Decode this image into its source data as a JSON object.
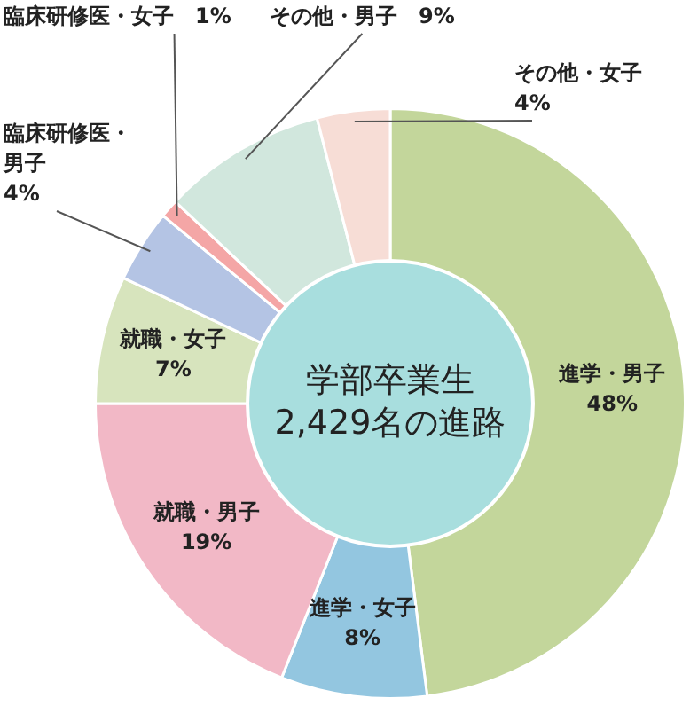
{
  "chart_data": {
    "type": "donut",
    "title": "学部卒業生\n2,429名の進路",
    "categories": [
      "進学・男子",
      "進学・女子",
      "就職・男子",
      "就職・女子",
      "臨床研修医・男子",
      "臨床研修医・女子",
      "その他・男子",
      "その他・女子"
    ],
    "values": [
      48,
      8,
      19,
      7,
      4,
      1,
      9,
      4
    ],
    "value_labels": [
      "48%",
      "8%",
      "19%",
      "7%",
      "4%",
      "1%",
      "9%",
      "4%"
    ],
    "colors": [
      "#c3d69b",
      "#93c6e0",
      "#f2b8c6",
      "#d7e4bd",
      "#b4c4e4",
      "#f4a6a6",
      "#d1e7dd",
      "#f7ddd6"
    ],
    "legend": false
  }
}
